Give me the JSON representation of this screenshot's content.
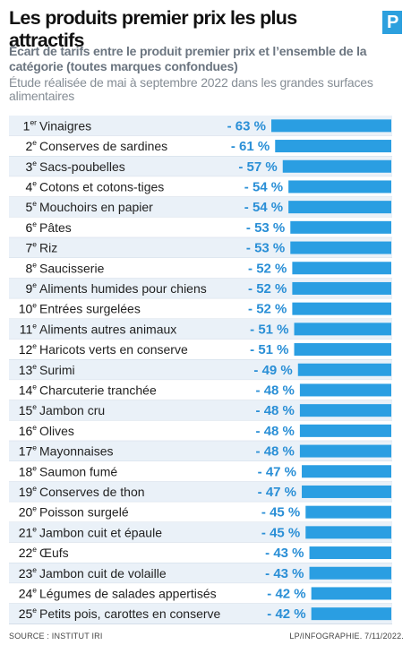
{
  "header": {
    "title": "Les produits premier prix les plus attractifs",
    "logo_letter": "P",
    "subtitle": "Écart de tarifs entre le produit premier prix et l’ensemble de la catégorie (toutes marques confondues)",
    "note": "Étude réalisée de mai à septembre 2022 dans les grandes surfaces alimentaires"
  },
  "footer": {
    "source": "SOURCE : INSTITUT IRI",
    "credit": "LP/INFOGRAPHIE.  7/11/2022."
  },
  "colors": {
    "bar": "#2a9ee2",
    "value_text": "#2a8fd6",
    "row_shade": "#eaf1f8",
    "logo": "#2da0de"
  },
  "chart_data": {
    "type": "bar",
    "orientation": "horizontal",
    "title": "Les produits premier prix les plus attractifs",
    "unit": "%",
    "categories": [
      "Vinaigres",
      "Conserves de sardines",
      "Sacs-poubelles",
      "Cotons et cotons-tiges",
      "Mouchoirs en papier",
      "Pâtes",
      "Riz",
      "Saucisserie",
      "Aliments humides pour chiens",
      "Entrées surgelées",
      "Aliments autres animaux",
      "Haricots verts en conserve",
      "Surimi",
      "Charcuterie tranchée",
      "Jambon cru",
      "Olives",
      "Mayonnaises",
      "Saumon fumé",
      "Conserves de thon",
      "Poisson surgelé",
      "Jambon cuit et épaule",
      "Œufs",
      "Jambon cuit de volaille",
      "Légumes de salades appertisés",
      "Petits pois, carottes en conserve"
    ],
    "ranks": [
      "1",
      "2",
      "3",
      "4",
      "5",
      "6",
      "7",
      "8",
      "9",
      "10",
      "11",
      "12",
      "13",
      "14",
      "15",
      "16",
      "17",
      "18",
      "19",
      "20",
      "21",
      "22",
      "23",
      "24",
      "25"
    ],
    "rank_suffixes": [
      "er",
      "e",
      "e",
      "e",
      "e",
      "e",
      "e",
      "e",
      "e",
      "e",
      "e",
      "e",
      "e",
      "e",
      "e",
      "e",
      "e",
      "e",
      "e",
      "e",
      "e",
      "e",
      "e",
      "e",
      "e"
    ],
    "values": [
      -63,
      -61,
      -57,
      -54,
      -54,
      -53,
      -53,
      -52,
      -52,
      -52,
      -51,
      -51,
      -49,
      -48,
      -48,
      -48,
      -48,
      -47,
      -47,
      -45,
      -45,
      -43,
      -43,
      -42,
      -42
    ],
    "value_labels": [
      "- 63 %",
      "- 61 %",
      "- 57 %",
      "- 54 %",
      "- 54 %",
      "- 53 %",
      "- 53 %",
      "- 52 %",
      "- 52 %",
      "- 52 %",
      "- 51 %",
      "- 51 %",
      "- 49 %",
      "- 48 %",
      "- 48 %",
      "- 48 %",
      "- 48 %",
      "- 47 %",
      "- 47 %",
      "- 45 %",
      "- 45 %",
      "- 43 %",
      "- 43 %",
      "- 42 %",
      "- 42 %"
    ],
    "xlim": [
      -63,
      0
    ],
    "grid": false,
    "legend": "none"
  }
}
